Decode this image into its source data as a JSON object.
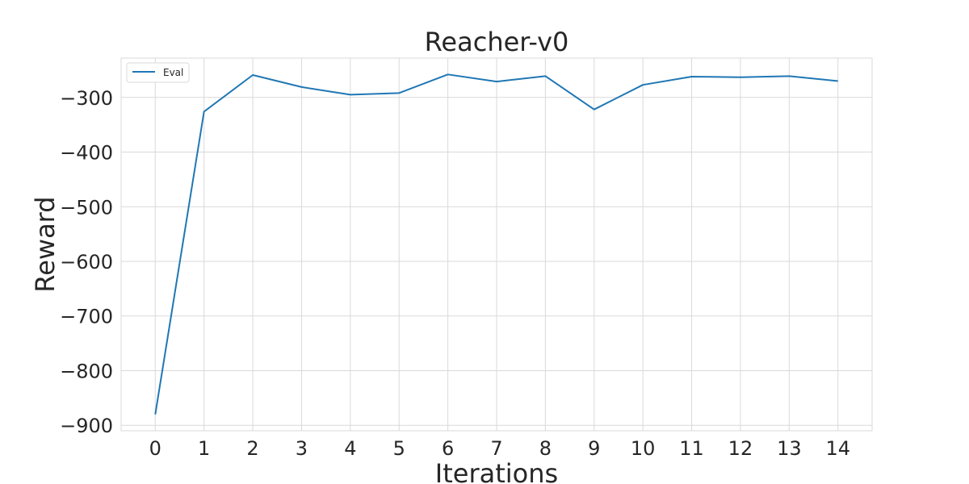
{
  "chart_data": {
    "type": "line",
    "title": "Reacher-v0",
    "xlabel": "Iterations",
    "ylabel": "Reward",
    "x": [
      0,
      1,
      2,
      3,
      4,
      5,
      6,
      7,
      8,
      9,
      10,
      11,
      12,
      13,
      14
    ],
    "xticks": [
      "0",
      "1",
      "2",
      "3",
      "4",
      "5",
      "6",
      "7",
      "8",
      "9",
      "10",
      "11",
      "12",
      "13",
      "14"
    ],
    "yticks": [
      -900,
      -800,
      -700,
      -600,
      -500,
      -400,
      -300
    ],
    "ytick_labels": [
      "−900",
      "−800",
      "−700",
      "−600",
      "−500",
      "−400",
      "−300"
    ],
    "xlim": [
      -0.7,
      14.7
    ],
    "ylim": [
      -910,
      -228
    ],
    "grid": true,
    "legend_position": "top-left",
    "series": [
      {
        "name": "Eval",
        "color": "#1f77b4",
        "values": [
          -880,
          -326,
          -259,
          -281,
          -295,
          -292,
          -258,
          -271,
          -261,
          -322,
          -277,
          -262,
          -263,
          -261,
          -270
        ]
      }
    ]
  }
}
